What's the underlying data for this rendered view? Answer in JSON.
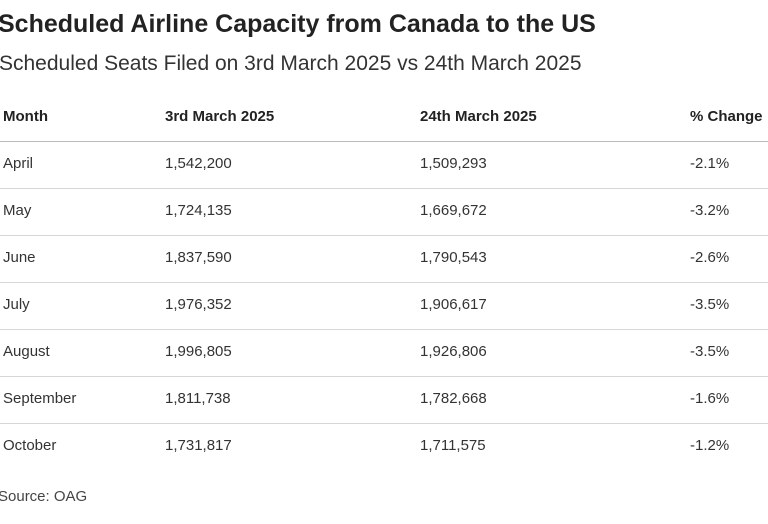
{
  "header": {
    "title": "Scheduled Airline Capacity from Canada to the US",
    "subtitle": "Scheduled Seats Filed on 3rd March 2025 vs 24th March 2025"
  },
  "table": {
    "columns": [
      "Month",
      "3rd March 2025",
      "24th March 2025",
      "% Change"
    ],
    "rows": [
      [
        "April",
        "1,542,200",
        "1,509,293",
        "-2.1%"
      ],
      [
        "May",
        "1,724,135",
        "1,669,672",
        "-3.2%"
      ],
      [
        "June",
        "1,837,590",
        "1,790,543",
        "-2.6%"
      ],
      [
        "July",
        "1,976,352",
        "1,906,617",
        "-3.5%"
      ],
      [
        "August",
        "1,996,805",
        "1,926,806",
        "-3.5%"
      ],
      [
        "September",
        "1,811,738",
        "1,782,668",
        "-1.6%"
      ],
      [
        "October",
        "1,731,817",
        "1,711,575",
        "-1.2%"
      ]
    ]
  },
  "footer": {
    "source": "Source: OAG"
  }
}
